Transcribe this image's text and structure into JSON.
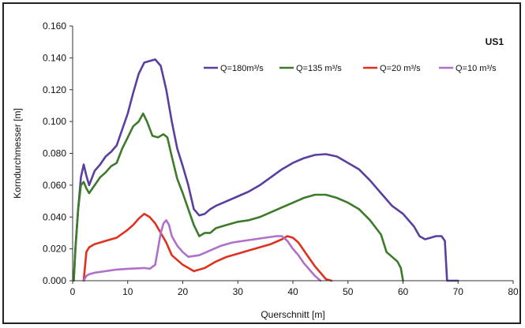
{
  "chart_data": {
    "type": "line",
    "title": "",
    "panel_label": "US1",
    "xlabel": "Querschnitt [m]",
    "ylabel": "Korndurchmesser [m]",
    "xlim": [
      0,
      80
    ],
    "ylim": [
      0,
      0.16
    ],
    "x_ticks": [
      "0",
      "10",
      "20",
      "30",
      "40",
      "50",
      "60",
      "70",
      "80"
    ],
    "y_ticks": [
      "0.000",
      "0.020",
      "0.040",
      "0.060",
      "0.080",
      "0.100",
      "0.120",
      "0.140",
      "0.160"
    ],
    "grid": false,
    "legend_position": "top-right",
    "series": [
      {
        "name": "Q=180m³/s",
        "color": "#5a3fa0",
        "points": [
          [
            0.2,
            0.0
          ],
          [
            0.5,
            0.02
          ],
          [
            1,
            0.045
          ],
          [
            1.5,
            0.065
          ],
          [
            2,
            0.073
          ],
          [
            2.5,
            0.066
          ],
          [
            3,
            0.06
          ],
          [
            4,
            0.069
          ],
          [
            5,
            0.073
          ],
          [
            6,
            0.078
          ],
          [
            7,
            0.081
          ],
          [
            8,
            0.085
          ],
          [
            9,
            0.095
          ],
          [
            10,
            0.105
          ],
          [
            11,
            0.118
          ],
          [
            12,
            0.13
          ],
          [
            13,
            0.137
          ],
          [
            14,
            0.138
          ],
          [
            15,
            0.139
          ],
          [
            16,
            0.135
          ],
          [
            17,
            0.12
          ],
          [
            18,
            0.1
          ],
          [
            19,
            0.083
          ],
          [
            20,
            0.072
          ],
          [
            21,
            0.06
          ],
          [
            22,
            0.045
          ],
          [
            23,
            0.041
          ],
          [
            24,
            0.042
          ],
          [
            25,
            0.045
          ],
          [
            26,
            0.047
          ],
          [
            28,
            0.05
          ],
          [
            30,
            0.053
          ],
          [
            32,
            0.056
          ],
          [
            34,
            0.06
          ],
          [
            36,
            0.065
          ],
          [
            38,
            0.07
          ],
          [
            40,
            0.074
          ],
          [
            42,
            0.077
          ],
          [
            44,
            0.079
          ],
          [
            46,
            0.0795
          ],
          [
            48,
            0.078
          ],
          [
            50,
            0.074
          ],
          [
            52,
            0.07
          ],
          [
            54,
            0.063
          ],
          [
            56,
            0.055
          ],
          [
            58,
            0.047
          ],
          [
            60,
            0.042
          ],
          [
            62,
            0.034
          ],
          [
            63,
            0.028
          ],
          [
            64,
            0.026
          ],
          [
            65,
            0.027
          ],
          [
            66,
            0.028
          ],
          [
            67,
            0.028
          ],
          [
            67.6,
            0.025
          ],
          [
            68,
            0.0
          ],
          [
            70,
            0.0
          ]
        ]
      },
      {
        "name": "Q=135 m³/s",
        "color": "#3d7a2a",
        "points": [
          [
            0.2,
            0.0
          ],
          [
            0.5,
            0.02
          ],
          [
            1,
            0.045
          ],
          [
            1.5,
            0.06
          ],
          [
            2,
            0.062
          ],
          [
            2.5,
            0.058
          ],
          [
            3,
            0.055
          ],
          [
            4,
            0.06
          ],
          [
            5,
            0.065
          ],
          [
            6,
            0.068
          ],
          [
            7,
            0.072
          ],
          [
            8,
            0.074
          ],
          [
            9,
            0.083
          ],
          [
            10,
            0.09
          ],
          [
            11,
            0.097
          ],
          [
            12,
            0.1
          ],
          [
            12.8,
            0.105
          ],
          [
            13.5,
            0.1
          ],
          [
            14.5,
            0.091
          ],
          [
            15.5,
            0.09
          ],
          [
            16.5,
            0.092
          ],
          [
            17.2,
            0.09
          ],
          [
            18,
            0.078
          ],
          [
            19,
            0.064
          ],
          [
            20,
            0.055
          ],
          [
            21,
            0.045
          ],
          [
            22,
            0.035
          ],
          [
            23,
            0.028
          ],
          [
            24,
            0.03
          ],
          [
            25,
            0.03
          ],
          [
            26,
            0.033
          ],
          [
            28,
            0.035
          ],
          [
            30,
            0.037
          ],
          [
            32,
            0.038
          ],
          [
            34,
            0.04
          ],
          [
            36,
            0.043
          ],
          [
            38,
            0.046
          ],
          [
            40,
            0.049
          ],
          [
            42,
            0.052
          ],
          [
            44,
            0.054
          ],
          [
            46,
            0.054
          ],
          [
            48,
            0.052
          ],
          [
            50,
            0.049
          ],
          [
            52,
            0.045
          ],
          [
            54,
            0.038
          ],
          [
            56,
            0.029
          ],
          [
            57,
            0.018
          ],
          [
            58,
            0.015
          ],
          [
            59,
            0.012
          ],
          [
            59.6,
            0.008
          ],
          [
            60,
            0.0
          ]
        ]
      },
      {
        "name": "Q=20 m³/s",
        "color": "#e03020",
        "points": [
          [
            2,
            0.0
          ],
          [
            2.5,
            0.018
          ],
          [
            3,
            0.021
          ],
          [
            4,
            0.023
          ],
          [
            5,
            0.024
          ],
          [
            6,
            0.025
          ],
          [
            8,
            0.027
          ],
          [
            10,
            0.032
          ],
          [
            11,
            0.035
          ],
          [
            12,
            0.039
          ],
          [
            13,
            0.042
          ],
          [
            14,
            0.04
          ],
          [
            15,
            0.036
          ],
          [
            16,
            0.03
          ],
          [
            17,
            0.024
          ],
          [
            18,
            0.016
          ],
          [
            20,
            0.01
          ],
          [
            22,
            0.006
          ],
          [
            24,
            0.008
          ],
          [
            26,
            0.012
          ],
          [
            28,
            0.015
          ],
          [
            30,
            0.017
          ],
          [
            32,
            0.019
          ],
          [
            34,
            0.021
          ],
          [
            36,
            0.023
          ],
          [
            38,
            0.026
          ],
          [
            39,
            0.028
          ],
          [
            40,
            0.027
          ],
          [
            41,
            0.024
          ],
          [
            42,
            0.019
          ],
          [
            43,
            0.014
          ],
          [
            44,
            0.009
          ],
          [
            45,
            0.005
          ],
          [
            46,
            0.001
          ],
          [
            47,
            0.0
          ]
        ]
      },
      {
        "name": "Q=10 m³/s",
        "color": "#b070c8",
        "points": [
          [
            2,
            0.0
          ],
          [
            2.5,
            0.003
          ],
          [
            3,
            0.004
          ],
          [
            4,
            0.005
          ],
          [
            6,
            0.006
          ],
          [
            8,
            0.007
          ],
          [
            10,
            0.0075
          ],
          [
            13,
            0.008
          ],
          [
            14,
            0.0075
          ],
          [
            15,
            0.01
          ],
          [
            15.5,
            0.02
          ],
          [
            16,
            0.03
          ],
          [
            16.5,
            0.036
          ],
          [
            17,
            0.038
          ],
          [
            17.5,
            0.035
          ],
          [
            18,
            0.028
          ],
          [
            19,
            0.022
          ],
          [
            20,
            0.018
          ],
          [
            21,
            0.015
          ],
          [
            23,
            0.016
          ],
          [
            25,
            0.019
          ],
          [
            27,
            0.022
          ],
          [
            29,
            0.024
          ],
          [
            31,
            0.025
          ],
          [
            33,
            0.026
          ],
          [
            35,
            0.027
          ],
          [
            37,
            0.028
          ],
          [
            38,
            0.028
          ],
          [
            39,
            0.025
          ],
          [
            40,
            0.02
          ],
          [
            41,
            0.016
          ],
          [
            42,
            0.011
          ],
          [
            43,
            0.007
          ],
          [
            44,
            0.003
          ],
          [
            45,
            0.0
          ]
        ]
      }
    ]
  }
}
